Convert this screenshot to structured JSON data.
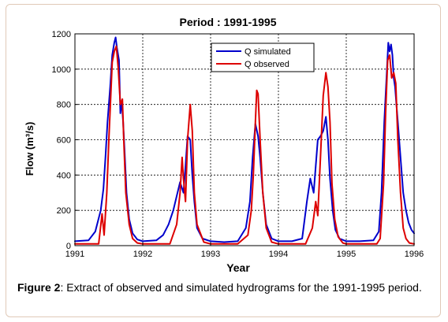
{
  "figure": {
    "caption_label": "Figure 2",
    "caption_text": ": Extract of observed and simulated hydrograms for the 1991-1995 period."
  },
  "chart_data": {
    "type": "line",
    "title": "Period : 1991-1995",
    "xlabel": "Year",
    "ylabel": "Flow (m³/s)",
    "xlim": [
      1991,
      1996
    ],
    "ylim": [
      0,
      1200
    ],
    "xticks": [
      1991,
      1992,
      1993,
      1994,
      1995,
      1996
    ],
    "yticks": [
      0,
      200,
      400,
      600,
      800,
      1000,
      1200
    ],
    "grid": true,
    "legend_position": "top-center",
    "series": [
      {
        "name": "Q simulated",
        "color": "#0000cc",
        "x": [
          1991.0,
          1991.2,
          1991.3,
          1991.38,
          1991.42,
          1991.45,
          1991.48,
          1991.52,
          1991.55,
          1991.58,
          1991.6,
          1991.62,
          1991.65,
          1991.67,
          1991.69,
          1991.71,
          1991.73,
          1991.76,
          1991.8,
          1991.85,
          1991.92,
          1992.0,
          1992.2,
          1992.3,
          1992.38,
          1992.45,
          1992.5,
          1992.55,
          1992.6,
          1992.63,
          1992.66,
          1992.7,
          1992.73,
          1992.76,
          1992.8,
          1992.88,
          1993.0,
          1993.2,
          1993.4,
          1993.52,
          1993.58,
          1993.62,
          1993.66,
          1993.7,
          1993.73,
          1993.77,
          1993.82,
          1993.9,
          1994.0,
          1994.2,
          1994.35,
          1994.42,
          1994.47,
          1994.52,
          1994.55,
          1994.58,
          1994.62,
          1994.66,
          1994.7,
          1994.73,
          1994.76,
          1994.8,
          1994.84,
          1994.9,
          1995.0,
          1995.2,
          1995.4,
          1995.48,
          1995.52,
          1995.56,
          1995.6,
          1995.62,
          1995.64,
          1995.66,
          1995.68,
          1995.7,
          1995.72,
          1995.74,
          1995.76,
          1995.8,
          1995.84,
          1995.88,
          1995.92,
          1995.96,
          1996.0
        ],
        "y": [
          25,
          30,
          80,
          200,
          320,
          500,
          700,
          900,
          1080,
          1150,
          1180,
          1120,
          1050,
          750,
          820,
          700,
          550,
          300,
          150,
          70,
          35,
          25,
          30,
          60,
          120,
          200,
          280,
          360,
          300,
          450,
          620,
          600,
          400,
          250,
          100,
          40,
          25,
          20,
          25,
          100,
          250,
          500,
          690,
          620,
          500,
          300,
          120,
          40,
          25,
          25,
          40,
          250,
          380,
          300,
          450,
          600,
          620,
          650,
          730,
          600,
          380,
          200,
          90,
          40,
          25,
          25,
          30,
          80,
          300,
          700,
          1000,
          1150,
          1100,
          1140,
          1080,
          950,
          900,
          800,
          700,
          500,
          300,
          200,
          130,
          90,
          70
        ]
      },
      {
        "name": "Q observed",
        "color": "#dd0000",
        "x": [
          1991.0,
          1991.35,
          1991.4,
          1991.43,
          1991.47,
          1991.5,
          1991.55,
          1991.58,
          1991.61,
          1991.64,
          1991.67,
          1991.7,
          1991.72,
          1991.75,
          1991.8,
          1991.85,
          1991.92,
          1992.0,
          1992.4,
          1992.5,
          1992.55,
          1992.58,
          1992.6,
          1992.63,
          1992.66,
          1992.7,
          1992.73,
          1992.76,
          1992.8,
          1992.9,
          1993.0,
          1993.4,
          1993.55,
          1993.6,
          1993.63,
          1993.66,
          1993.68,
          1993.7,
          1993.73,
          1993.77,
          1993.82,
          1993.9,
          1994.0,
          1994.4,
          1994.5,
          1994.55,
          1994.58,
          1994.62,
          1994.66,
          1994.7,
          1994.73,
          1994.76,
          1994.79,
          1994.83,
          1994.88,
          1994.95,
          1995.0,
          1995.45,
          1995.5,
          1995.55,
          1995.58,
          1995.61,
          1995.64,
          1995.67,
          1995.7,
          1995.73,
          1995.76,
          1995.8,
          1995.84,
          1995.88,
          1995.93,
          1996.0
        ],
        "y": [
          10,
          10,
          180,
          60,
          300,
          600,
          1040,
          1100,
          1130,
          1000,
          800,
          830,
          600,
          300,
          120,
          40,
          15,
          10,
          10,
          120,
          300,
          500,
          380,
          250,
          600,
          800,
          650,
          300,
          120,
          20,
          10,
          10,
          60,
          200,
          400,
          700,
          880,
          860,
          600,
          300,
          100,
          20,
          10,
          10,
          100,
          250,
          170,
          500,
          850,
          980,
          900,
          700,
          350,
          150,
          50,
          15,
          10,
          10,
          40,
          350,
          750,
          1050,
          1080,
          950,
          980,
          920,
          600,
          300,
          100,
          40,
          15,
          10
        ]
      }
    ]
  }
}
